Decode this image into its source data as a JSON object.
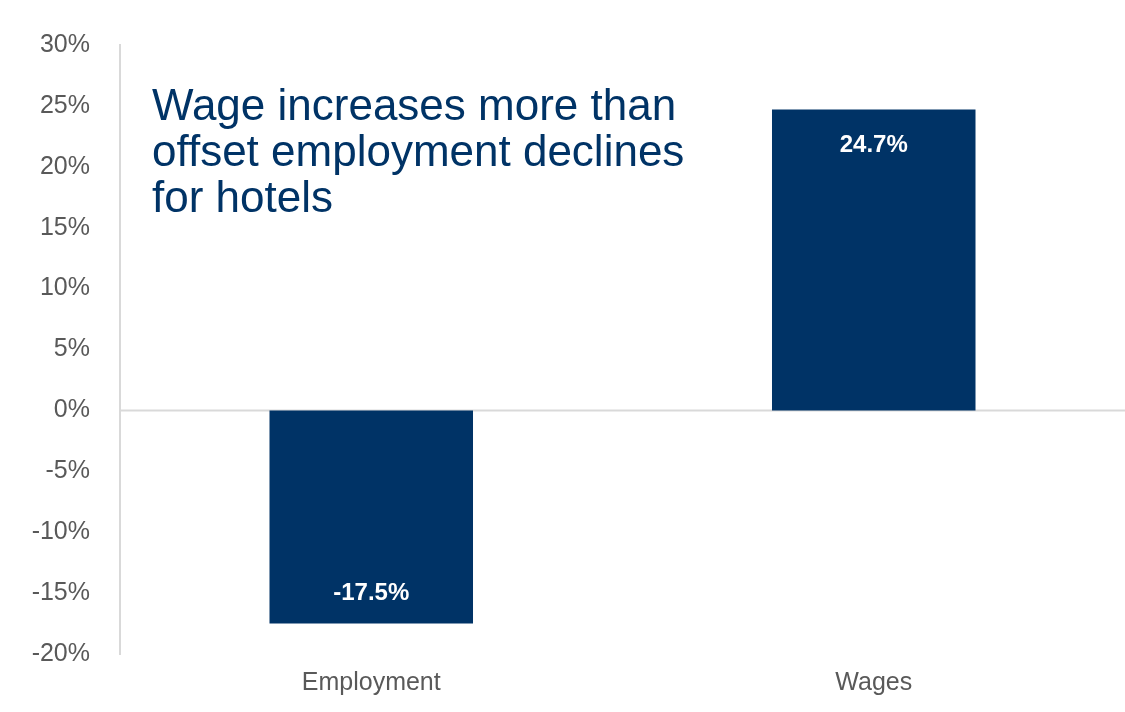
{
  "chart_data": {
    "type": "bar",
    "title": "Wage increases more than offset employment declines for hotels",
    "categories": [
      "Employment",
      "Wages"
    ],
    "values": [
      -17.5,
      24.7
    ],
    "color": "#003366",
    "ylim": [
      -20,
      30
    ],
    "yticks": [
      {
        "value": -20,
        "label": "-20%"
      },
      {
        "value": -15,
        "label": "-15%"
      },
      {
        "value": -10,
        "label": "-10%"
      },
      {
        "value": -5,
        "label": "-5%"
      },
      {
        "value": 0,
        "label": "0%"
      },
      {
        "value": 5,
        "label": "5%"
      },
      {
        "value": 10,
        "label": "10%"
      },
      {
        "value": 15,
        "label": "15%"
      },
      {
        "value": 20,
        "label": "20%"
      },
      {
        "value": 25,
        "label": "25%"
      },
      {
        "value": 30,
        "label": "30%"
      }
    ],
    "value_labels": [
      "-17.5%",
      "24.7%"
    ],
    "ref_lines": [
      {
        "axis": "y",
        "value": 0,
        "color": "#d9d9d9"
      }
    ],
    "grid": false,
    "legend": false
  }
}
